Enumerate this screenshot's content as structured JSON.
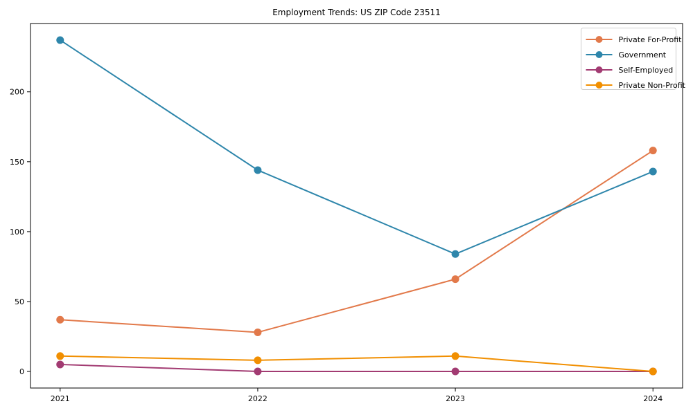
{
  "chart_data": {
    "type": "line",
    "title": "Employment Trends: US ZIP Code 23511",
    "xlabel": "",
    "ylabel": "",
    "x": [
      2021,
      2022,
      2023,
      2024
    ],
    "x_tick_labels": [
      "2021",
      "2022",
      "2023",
      "2024"
    ],
    "y_ticks": [
      0,
      50,
      100,
      150,
      200
    ],
    "y_tick_labels": [
      "0",
      "50",
      "100",
      "150",
      "200"
    ],
    "xlim": [
      2020.85,
      2024.15
    ],
    "ylim": [
      -11.85,
      248.85
    ],
    "grid": false,
    "legend_position": "upper right",
    "marker": "o",
    "line_width": 2,
    "series": [
      {
        "name": "Private For-Profit",
        "color": "#E2794A",
        "values": [
          37,
          28,
          66,
          158
        ]
      },
      {
        "name": "Government",
        "color": "#2E86AB",
        "values": [
          237,
          144,
          84,
          143
        ]
      },
      {
        "name": "Self-Employed",
        "color": "#A23B72",
        "values": [
          5,
          0,
          0,
          0
        ]
      },
      {
        "name": "Private Non-Profit",
        "color": "#F18F01",
        "values": [
          11,
          8,
          11,
          0
        ]
      }
    ],
    "colors": {
      "axis": "#000000",
      "legend_border": "#cccccc",
      "background": "#ffffff"
    }
  }
}
